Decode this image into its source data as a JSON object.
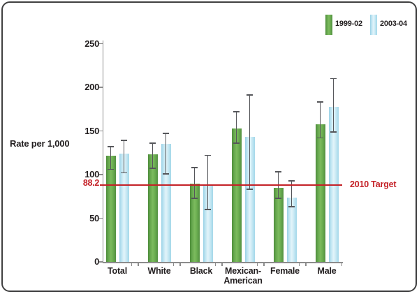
{
  "panel": {
    "background": "#ffffff",
    "border_color": "#404041"
  },
  "y_axis_title": "Rate per 1,000",
  "legend": {
    "items": [
      {
        "label": "1999-02",
        "color": "#6aad4f"
      },
      {
        "label": "2003-04",
        "color": "#bde3f1"
      }
    ]
  },
  "target": {
    "value": 88.2,
    "axis_label": "88.2",
    "label": "2010 Target",
    "color": "#c42127"
  },
  "chart_data": {
    "type": "bar",
    "title": "",
    "xlabel": "",
    "ylabel": "Rate per 1,000",
    "ylim": [
      0,
      250
    ],
    "y_ticks": [
      0,
      50,
      100,
      150,
      200,
      250
    ],
    "grid": false,
    "legend_position": "top-right",
    "categories": [
      "Total",
      "White",
      "Black",
      "Mexican-\nAmerican",
      "Female",
      "Male"
    ],
    "series": [
      {
        "name": "1999-02",
        "color": "#6aad4f",
        "values": [
          122,
          123,
          90,
          153,
          85,
          158
        ],
        "error_low": [
          106,
          107,
          73,
          136,
          73,
          142
        ],
        "error_high": [
          132,
          136,
          108,
          172,
          103,
          183
        ]
      },
      {
        "name": "2003-04",
        "color": "#bde3f1",
        "values": [
          124,
          135,
          87,
          143,
          74,
          178
        ],
        "error_low": [
          102,
          101,
          60,
          83,
          63,
          149
        ],
        "error_high": [
          139,
          147,
          122,
          191,
          93,
          210
        ]
      }
    ],
    "target_line": {
      "value": 88.2,
      "label": "2010 Target",
      "color": "#c42127"
    }
  }
}
